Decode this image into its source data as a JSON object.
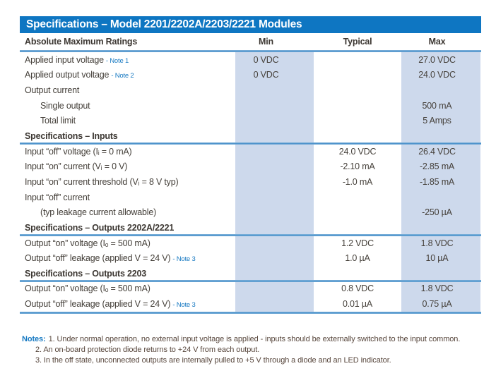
{
  "colors": {
    "title_bar": "#0E76C2",
    "column_band": "#CDD9EC",
    "rule": "#4E94CC",
    "table_text": "#45403A",
    "note_ref_blue": "#1779C2",
    "notes_text": "#57463C"
  },
  "table": {
    "title": "Specifications – Model 2201/2202A/2203/2221 Modules",
    "header": {
      "label": "Absolute Maximum Ratings",
      "min": "Min",
      "typical": "Typical",
      "max": "Max"
    },
    "rows": [
      {
        "label": "Applied input voltage",
        "note": "- Note 1",
        "min": "0 VDC",
        "typical": "",
        "max": "27.0 VDC"
      },
      {
        "label": "Applied output voltage",
        "note": "- Note 2",
        "min": "0 VDC",
        "typical": "",
        "max": "24.0 VDC"
      },
      {
        "label": "Output current",
        "note": "",
        "min": "",
        "typical": "",
        "max": ""
      },
      {
        "label": "Single output",
        "note": "",
        "min": "",
        "typical": "",
        "max": "500 mA"
      },
      {
        "label": "Total limit",
        "note": "",
        "min": "",
        "typical": "",
        "max": "5 Amps"
      },
      {
        "label": "Specifications – Inputs",
        "note": "",
        "min": "",
        "typical": "",
        "max": ""
      },
      {
        "label": "Input “off” voltage (Iᵢ = 0 mA)",
        "note": "",
        "min": "",
        "typical": "24.0 VDC",
        "max": "26.4 VDC"
      },
      {
        "label": "Input “on” current (Vᵢ = 0 V)",
        "note": "",
        "min": "",
        "typical": "-2.10 mA",
        "max": "-2.85 mA"
      },
      {
        "label": "Input “on” current threshold (Vᵢ = 8 V typ)",
        "note": "",
        "min": "",
        "typical": "-1.0 mA",
        "max": "-1.85 mA"
      },
      {
        "label": "Input “off” current",
        "note": "",
        "min": "",
        "typical": "",
        "max": ""
      },
      {
        "label": "(typ leakage current allowable)",
        "note": "",
        "min": "",
        "typical": "",
        "max": "-250 µA"
      },
      {
        "label": "Specifications – Outputs 2202A/2221",
        "note": "",
        "min": "",
        "typical": "",
        "max": ""
      },
      {
        "label": "Output “on” voltage (Iₒ = 500 mA)",
        "note": "",
        "min": "",
        "typical": "1.2 VDC",
        "max": "1.8 VDC"
      },
      {
        "label": "Output “off” leakage (applied V = 24 V)",
        "note": "- Note 3",
        "min": "",
        "typical": "1.0 µA",
        "max": "10 µA"
      },
      {
        "label": "Specifications – Outputs 2203",
        "note": "",
        "min": "",
        "typical": "",
        "max": ""
      },
      {
        "label": "Output “on” voltage (Iₒ = 500 mA)",
        "note": "",
        "min": "",
        "typical": "0.8 VDC",
        "max": "1.8 VDC"
      },
      {
        "label": "Output “off” leakage (applied V = 24 V)",
        "note": "- Note 3",
        "min": "",
        "typical": "0.01 µA",
        "max": "0.75 µA"
      }
    ]
  },
  "notes": {
    "label": "Notes:",
    "items": [
      "1. Under normal operation, no external input voltage is applied - inputs should be externally switched to the input common.",
      "2. An on-board protection diode returns to +24 V from each output.",
      "3. In the off state, unconnected outputs are internally pulled to +5 V through a diode and an LED indicator."
    ]
  }
}
